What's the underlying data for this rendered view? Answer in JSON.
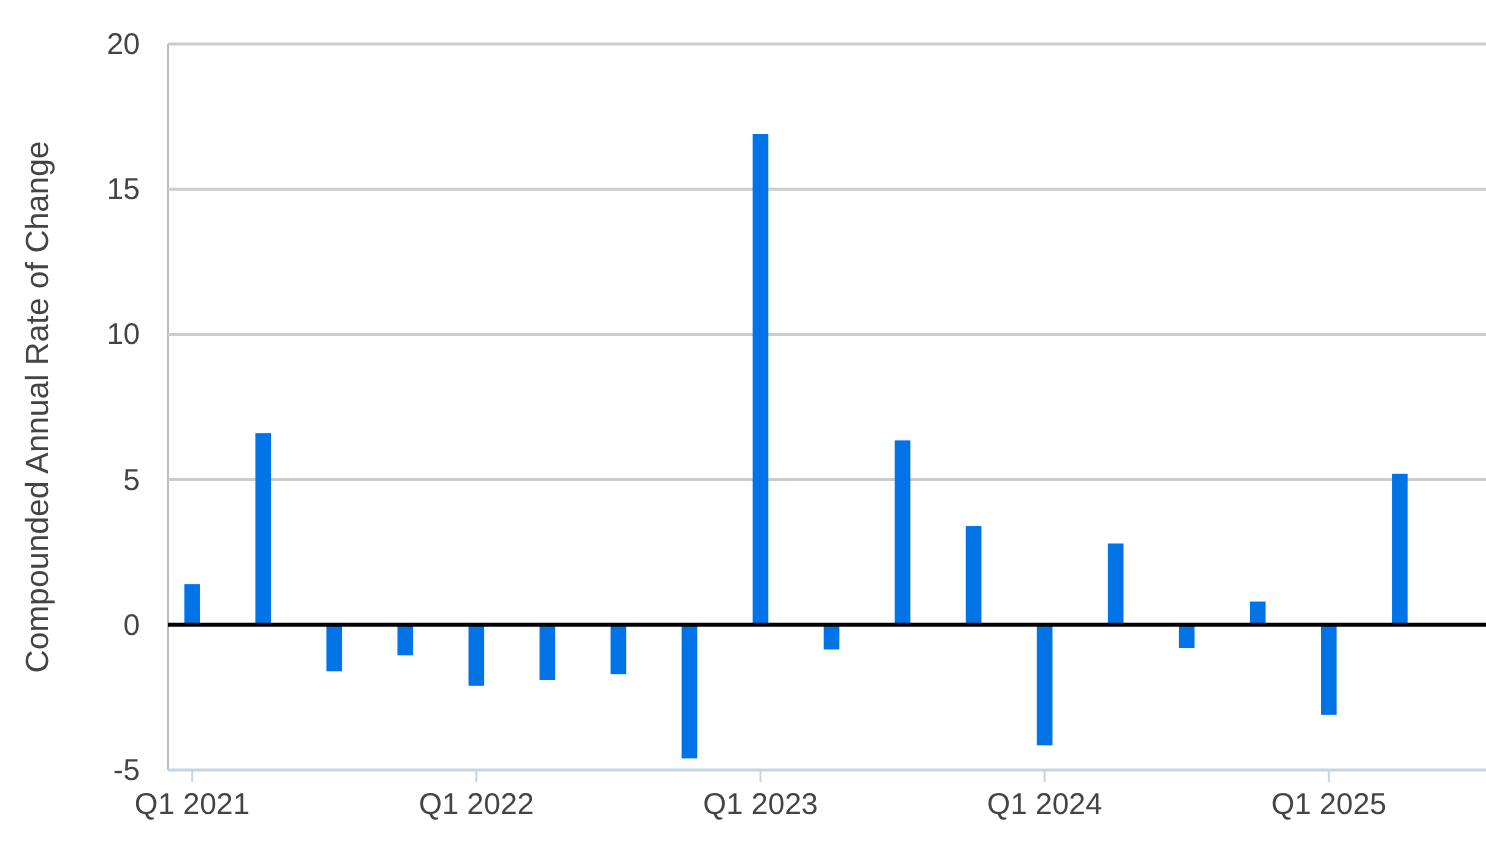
{
  "chart_data": {
    "type": "bar",
    "ylabel": "Compounded Annual Rate of Change",
    "categories": [
      "Q1 2021",
      null,
      null,
      null,
      "Q1 2022",
      null,
      null,
      null,
      "Q1 2023",
      null,
      null,
      null,
      "Q1 2024",
      null,
      null,
      null,
      "Q1 2025",
      null
    ],
    "values": [
      1.4,
      6.6,
      -1.6,
      -1.05,
      -2.1,
      -1.9,
      -1.7,
      -4.6,
      16.9,
      -0.85,
      6.35,
      3.4,
      -4.15,
      2.8,
      -0.8,
      0.8,
      -3.1,
      5.2
    ],
    "color": "#0073e6",
    "ylim": [
      -5,
      20
    ],
    "yticks": [
      -5,
      0,
      5,
      10,
      15,
      20
    ],
    "grid": "y"
  }
}
